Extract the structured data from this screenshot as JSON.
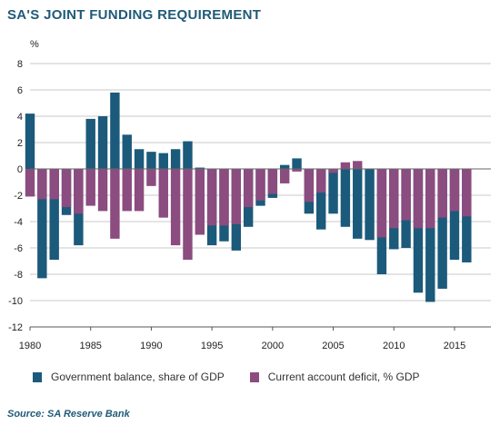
{
  "title": "SA'S JOINT FUNDING REQUIREMENT",
  "source": "Source: SA Reserve Bank",
  "colors": {
    "government": "#1b5a7a",
    "current_account": "#8b4c80",
    "grid": "#c8c8c8"
  },
  "chart_data": {
    "type": "bar",
    "yunit": "%",
    "ylim": [
      -12,
      8
    ],
    "yticks": [
      8,
      6,
      4,
      2,
      0,
      -2,
      -4,
      -6,
      -8,
      -10,
      -12
    ],
    "xlim": [
      1980,
      2018
    ],
    "xticks": [
      1980,
      1985,
      1990,
      1995,
      2000,
      2005,
      2010,
      2015
    ],
    "grid": true,
    "legend_position": "bottom",
    "categories": [
      1980,
      1981,
      1982,
      1983,
      1984,
      1985,
      1986,
      1987,
      1988,
      1989,
      1990,
      1991,
      1992,
      1993,
      1994,
      1995,
      1996,
      1997,
      1998,
      1999,
      2000,
      2001,
      2002,
      2003,
      2004,
      2005,
      2006,
      2007,
      2008,
      2009,
      2010,
      2011,
      2012,
      2013,
      2014,
      2015,
      2016
    ],
    "series": [
      {
        "name": "Government balance, share of GDP",
        "values": [
          4.2,
          -8.3,
          -6.9,
          -3.5,
          -5.8,
          3.8,
          4.0,
          5.8,
          2.6,
          1.5,
          1.3,
          1.2,
          1.5,
          2.1,
          0.1,
          -5.8,
          -5.5,
          -6.2,
          -4.4,
          -2.8,
          -2.2,
          0.3,
          0.8,
          -3.4,
          -4.6,
          -3.4,
          -4.4,
          -5.3,
          -5.4,
          -8.0,
          -6.1,
          -6.0,
          -9.4,
          -10.1,
          -9.1,
          -6.9,
          -7.1
        ]
      },
      {
        "name": "Current account deficit, % GDP",
        "values": [
          -2.1,
          -2.3,
          -2.3,
          -2.9,
          -3.4,
          -2.8,
          -3.2,
          -5.3,
          -3.2,
          -3.2,
          -1.3,
          -3.7,
          -5.8,
          -6.9,
          -5.0,
          -4.3,
          -4.3,
          -4.2,
          -2.9,
          -2.4,
          -1.9,
          -1.1,
          -0.2,
          -2.5,
          -1.8,
          -0.3,
          0.5,
          0.6,
          0.0,
          -5.2,
          -4.5,
          -3.9,
          -4.5,
          -4.5,
          -3.7,
          -3.2,
          -3.6
        ]
      }
    ]
  }
}
